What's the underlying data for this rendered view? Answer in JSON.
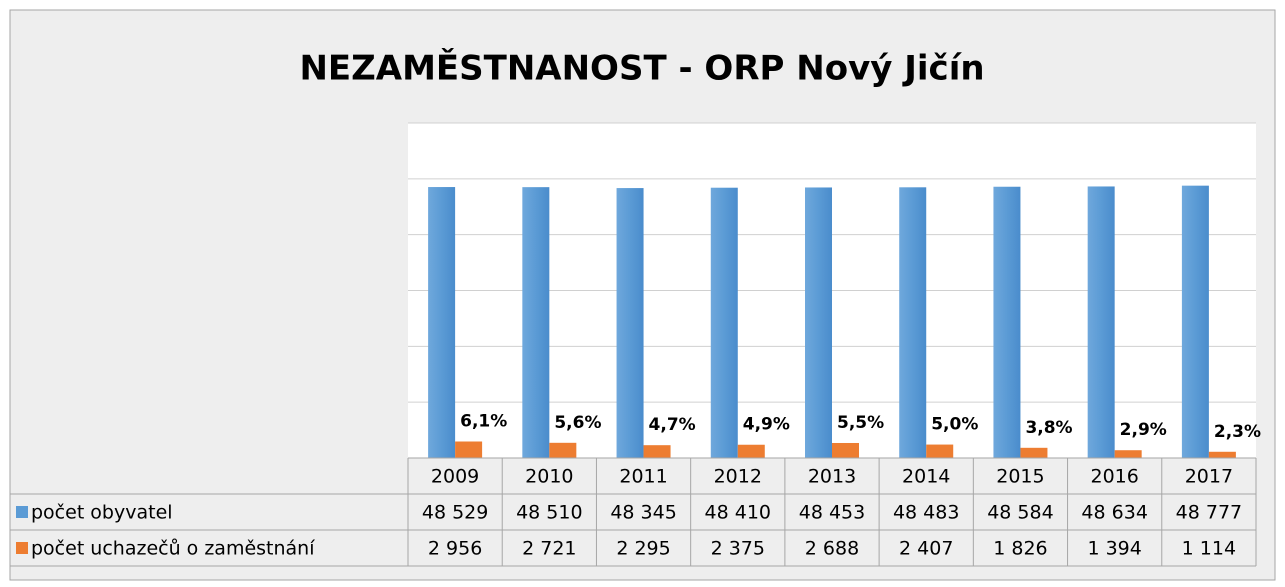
{
  "chart_data": {
    "type": "bar",
    "title": "NEZAMĚSTNANOST - ORP Nový Jičín",
    "categories": [
      "2009",
      "2010",
      "2011",
      "2012",
      "2013",
      "2014",
      "2015",
      "2016",
      "2017"
    ],
    "series": [
      {
        "name": "počet obyvatel",
        "color": "#5b9bd5",
        "values": [
          48529,
          48510,
          48345,
          48410,
          48453,
          48483,
          48584,
          48634,
          48777
        ],
        "value_labels": [
          "48 529",
          "48 510",
          "48 345",
          "48 410",
          "48 453",
          "48 483",
          "48 584",
          "48 634",
          "48 777"
        ]
      },
      {
        "name": "počet uchazečů o zaměstnání",
        "color": "#ed7d31",
        "values": [
          2956,
          2721,
          2295,
          2375,
          2688,
          2407,
          1826,
          1394,
          1114
        ],
        "value_labels": [
          "2 956",
          "2 721",
          "2 295",
          "2 375",
          "2 688",
          "2 407",
          "1 826",
          "1 394",
          "1 114"
        ]
      }
    ],
    "percent_labels": [
      "6,1%",
      "5,6%",
      "4,7%",
      "4,9%",
      "5,5%",
      "5,0%",
      "3,8%",
      "2,9%",
      "2,3%"
    ],
    "ylim": [
      0,
      60000
    ],
    "yticks": [
      0,
      10000,
      20000,
      30000,
      40000,
      50000,
      60000
    ],
    "grid": true
  }
}
